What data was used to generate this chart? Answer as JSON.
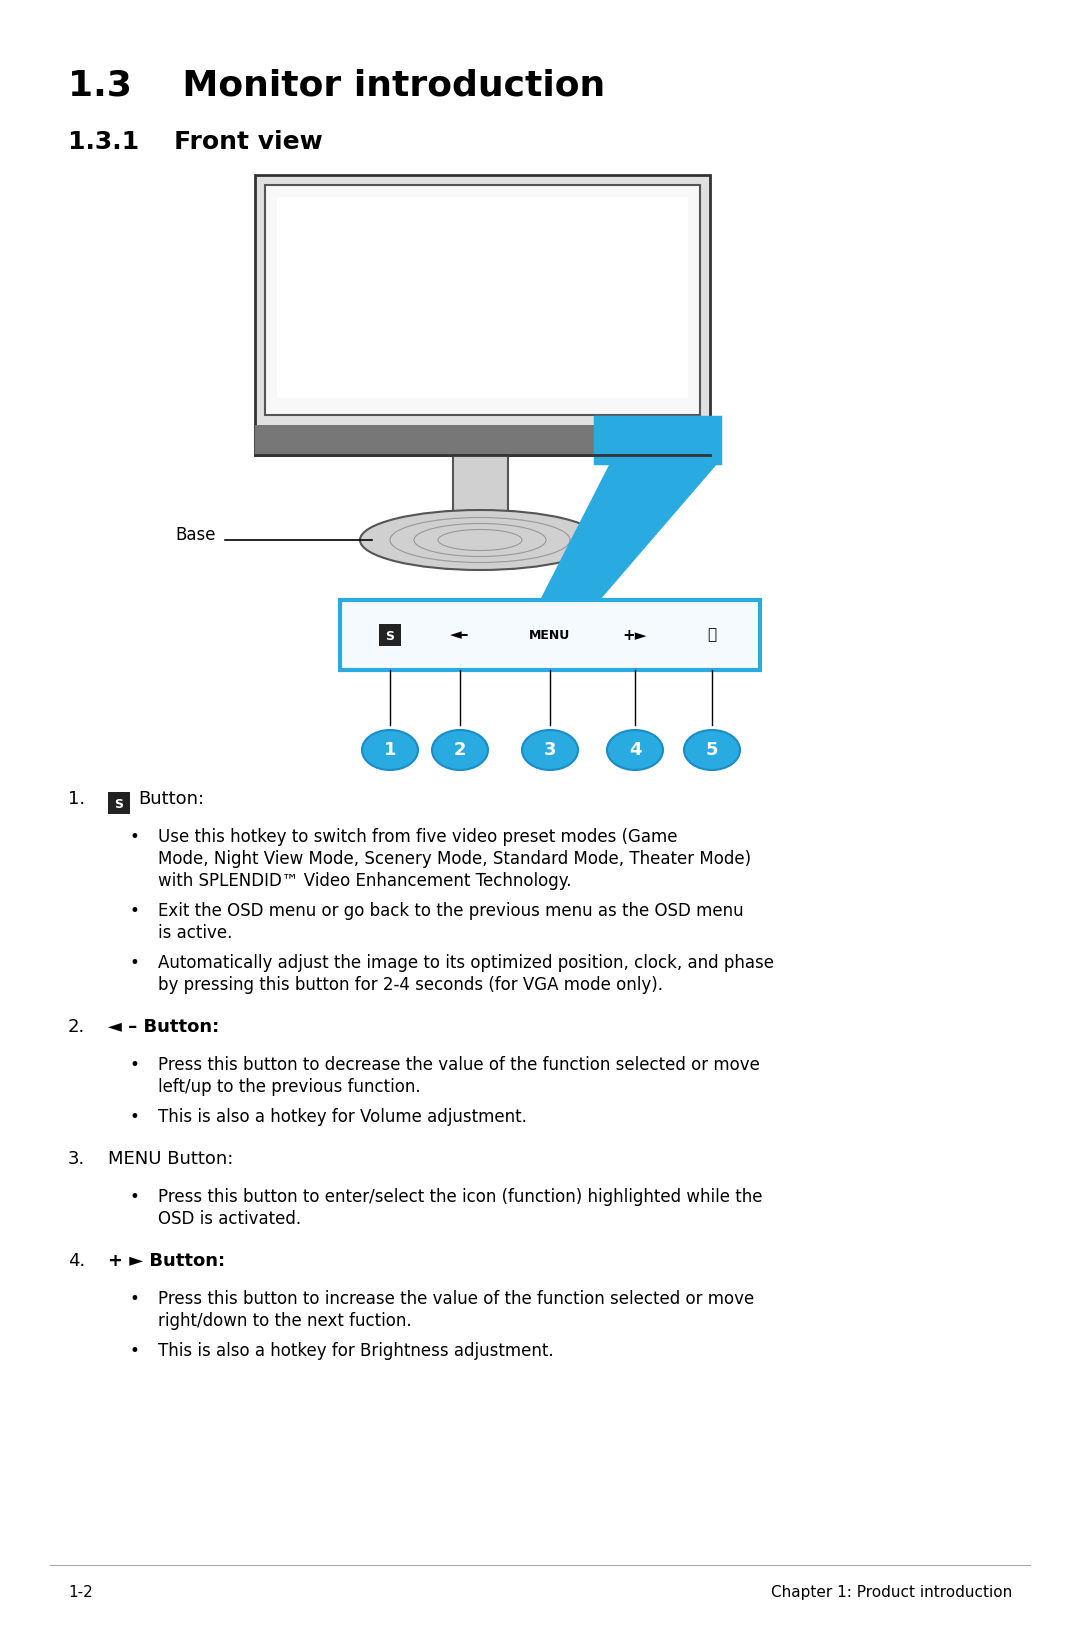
{
  "title": "1.3    Monitor introduction",
  "subtitle": "1.3.1    Front view",
  "bg_color": "#ffffff",
  "blue_color": "#29ABE2",
  "text_color": "#000000",
  "base_label": "Base",
  "numbered_labels": [
    "1",
    "2",
    "3",
    "4",
    "5"
  ],
  "section1_bullets": [
    "Use this hotkey to switch from five video preset modes (Game\nMode, Night View Mode, Scenery Mode, Standard Mode, Theater Mode)\nwith SPLENDID™ Video Enhancement Technology.",
    "Exit the OSD menu or go back to the previous menu as the OSD menu\nis active.",
    "Automatically adjust the image to its optimized position, clock, and phase\nby pressing this button for 2-4 seconds (for VGA mode only)."
  ],
  "section2_bullets": [
    "Press this button to decrease the value of the function selected or move\nleft/up to the previous function.",
    "This is also a hotkey for Volume adjustment."
  ],
  "section3_bullets": [
    "Press this button to enter/select the icon (function) highlighted while the\nOSD is activated."
  ],
  "section4_bullets": [
    "Press this button to increase the value of the function selected or move\nright/down to the next fuction.",
    "This is also a hotkey for Brightness adjustment."
  ],
  "footer_left": "1-2",
  "footer_right": "Chapter 1: Product introduction"
}
